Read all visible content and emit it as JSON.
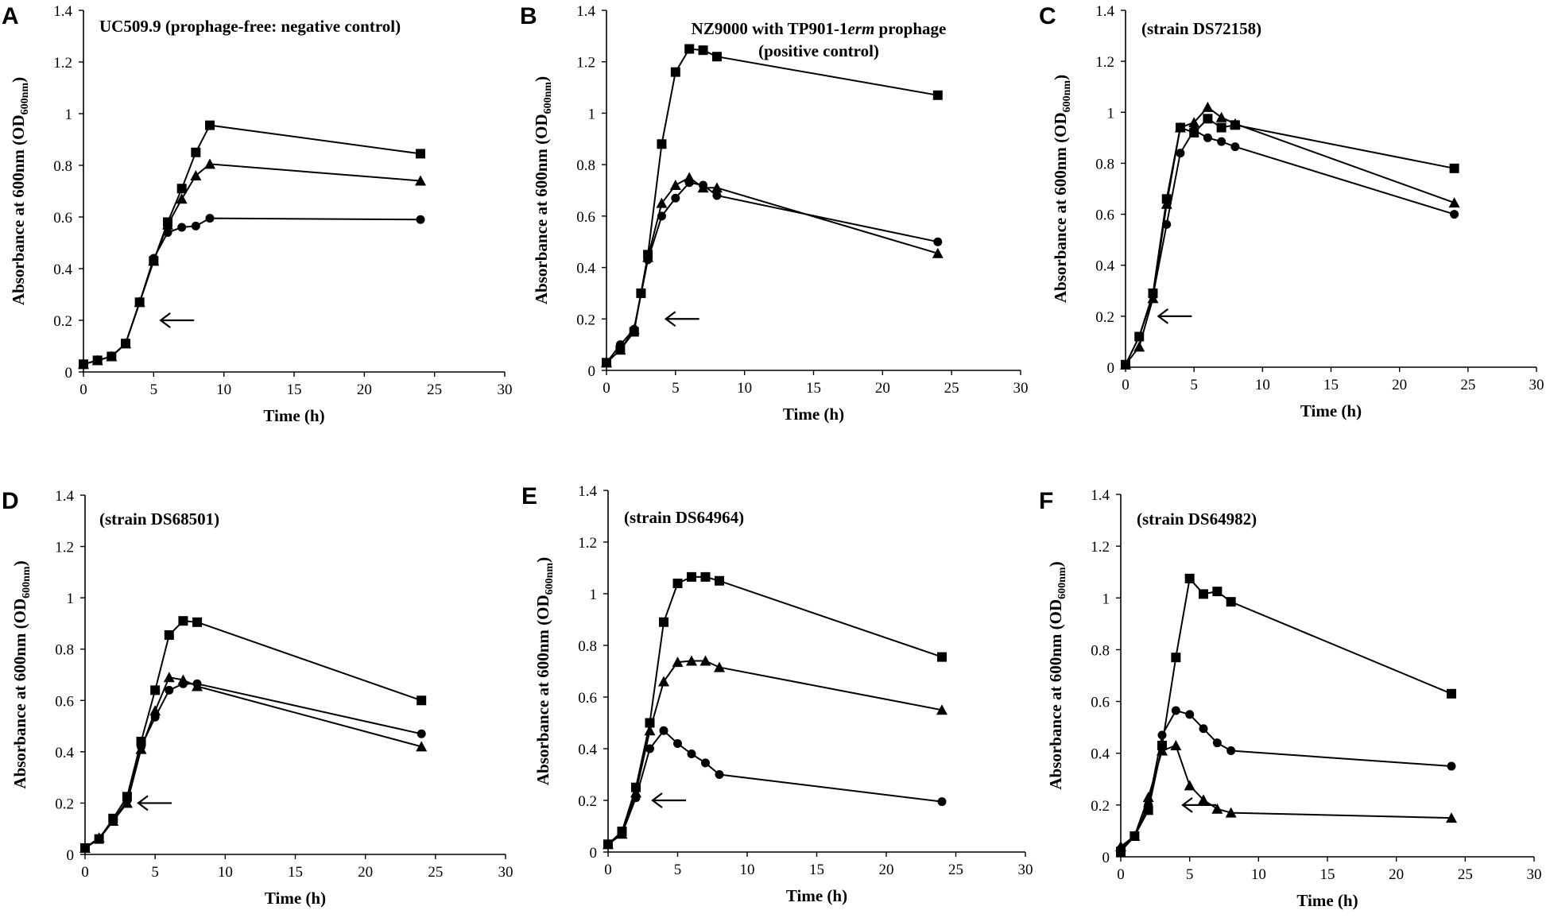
{
  "figure": {
    "xlabel": "Time (h)",
    "ylabel": "Absorbance at 600nm (OD",
    "ylabel_subscript": "600nm",
    "ylabel_suffix": ")",
    "arrow_symbol": "←"
  },
  "chart_data": [
    {
      "panel": "A",
      "type": "line",
      "title_lines": [
        "UC509.9 (prophage-free: negative control)"
      ],
      "xlabel": "Time (h)",
      "ylabel": "Absorbance at 600nm (OD600nm)",
      "xlim": [
        0,
        30
      ],
      "ylim": [
        0,
        1.4
      ],
      "xticks": [
        0,
        5,
        10,
        15,
        20,
        25,
        30
      ],
      "yticks": [
        0,
        0.2,
        0.4,
        0.6,
        0.8,
        1,
        1.2,
        1.4
      ],
      "ytick_labels": [
        "0",
        "0.2",
        "0.4",
        "0.6",
        "0.8",
        "1",
        "1.2",
        "1.4"
      ],
      "arrow_at": {
        "x": 5.5,
        "y": 0.2
      },
      "series": [
        {
          "name": "square",
          "marker": "square",
          "x": [
            0,
            1,
            2,
            3,
            4,
            5,
            6,
            7,
            8,
            9,
            24
          ],
          "y": [
            0.03,
            0.045,
            0.06,
            0.11,
            0.27,
            0.43,
            0.58,
            0.71,
            0.85,
            0.955,
            0.845
          ]
        },
        {
          "name": "triangle",
          "marker": "triangle",
          "x": [
            0,
            1,
            2,
            3,
            4,
            5,
            6,
            7,
            8,
            9,
            24
          ],
          "y": [
            0.03,
            0.045,
            0.06,
            0.11,
            0.27,
            0.43,
            0.57,
            0.67,
            0.76,
            0.805,
            0.74
          ]
        },
        {
          "name": "circle",
          "marker": "circle",
          "x": [
            0,
            1,
            2,
            3,
            4,
            5,
            6,
            7,
            8,
            9,
            24
          ],
          "y": [
            0.03,
            0.045,
            0.06,
            0.11,
            0.27,
            0.44,
            0.54,
            0.56,
            0.565,
            0.595,
            0.59
          ]
        }
      ]
    },
    {
      "panel": "B",
      "type": "line",
      "title_lines": [
        "NZ9000 with TP901-1erm prophage",
        "(positive control)"
      ],
      "xlabel": "Time (h)",
      "ylabel": "Absorbance at 600nm (OD600nm)",
      "xlim": [
        0,
        30
      ],
      "ylim": [
        0,
        1.4
      ],
      "xticks": [
        0,
        5,
        10,
        15,
        20,
        25,
        30
      ],
      "yticks": [
        0,
        0.2,
        0.4,
        0.6,
        0.8,
        1,
        1.2,
        1.4
      ],
      "ytick_labels": [
        "0",
        "0.2",
        "0.4",
        "0.6",
        "0.8",
        "1",
        "1.2",
        "1.4"
      ],
      "arrow_at": {
        "x": 4.3,
        "y": 0.2
      },
      "series": [
        {
          "name": "square",
          "marker": "square",
          "x": [
            0,
            1,
            2,
            2.5,
            3,
            4,
            5,
            6,
            7,
            8,
            24
          ],
          "y": [
            0.03,
            0.08,
            0.15,
            0.3,
            0.45,
            0.88,
            1.16,
            1.25,
            1.245,
            1.22,
            1.07
          ]
        },
        {
          "name": "triangle",
          "marker": "triangle",
          "x": [
            0,
            1,
            2,
            3,
            4,
            5,
            6,
            7,
            8,
            24
          ],
          "y": [
            0.03,
            0.08,
            0.16,
            0.44,
            0.65,
            0.72,
            0.75,
            0.71,
            0.71,
            0.455
          ]
        },
        {
          "name": "circle",
          "marker": "circle",
          "x": [
            0,
            1,
            2,
            3,
            4,
            5,
            6,
            7,
            8,
            24
          ],
          "y": [
            0.03,
            0.1,
            0.16,
            0.43,
            0.6,
            0.67,
            0.73,
            0.72,
            0.68,
            0.5
          ]
        }
      ]
    },
    {
      "panel": "C",
      "type": "line",
      "title_lines": [
        "(strain DS72158)"
      ],
      "xlabel": "Time (h)",
      "ylabel": "Absorbance at 600nm (OD600nm)",
      "xlim": [
        0,
        30
      ],
      "ylim": [
        0,
        1.4
      ],
      "xticks": [
        0,
        5,
        10,
        15,
        20,
        25,
        30
      ],
      "yticks": [
        0,
        0.2,
        0.4,
        0.6,
        0.8,
        1,
        1.2,
        1.4
      ],
      "ytick_labels": [
        "0",
        "0.2",
        "0.4",
        "0.6",
        "0.8",
        "1",
        "1.2",
        "1.4"
      ],
      "arrow_at": {
        "x": 2.4,
        "y": 0.2
      },
      "series": [
        {
          "name": "square",
          "marker": "square",
          "x": [
            0,
            1,
            2,
            3,
            4,
            5,
            6,
            7,
            8,
            24
          ],
          "y": [
            0.01,
            0.12,
            0.29,
            0.66,
            0.94,
            0.92,
            0.975,
            0.94,
            0.95,
            0.78
          ]
        },
        {
          "name": "triangle",
          "marker": "triangle",
          "x": [
            0,
            1,
            2,
            3,
            4,
            5,
            6,
            7,
            8,
            24
          ],
          "y": [
            0.01,
            0.08,
            0.27,
            0.64,
            0.94,
            0.96,
            1.02,
            0.98,
            0.955,
            0.645
          ]
        },
        {
          "name": "circle",
          "marker": "circle",
          "x": [
            0,
            1,
            2,
            3,
            4,
            5,
            6,
            7,
            8,
            24
          ],
          "y": [
            0.01,
            0.12,
            0.28,
            0.56,
            0.84,
            0.93,
            0.9,
            0.885,
            0.865,
            0.6
          ]
        }
      ]
    },
    {
      "panel": "D",
      "type": "line",
      "title_lines": [
        "(strain DS68501)"
      ],
      "xlabel": "Time (h)",
      "ylabel": "Absorbance at 600nm (OD600nm)",
      "xlim": [
        0,
        30
      ],
      "ylim": [
        0,
        1.4
      ],
      "xticks": [
        0,
        5,
        10,
        15,
        20,
        25,
        30
      ],
      "yticks": [
        0,
        0.2,
        0.4,
        0.6,
        0.8,
        1,
        1.2,
        1.4
      ],
      "ytick_labels": [
        "0",
        "0.2",
        "0.4",
        "0.6",
        "0.8",
        "1",
        "1.2",
        "1.4"
      ],
      "arrow_at": {
        "x": 3.8,
        "y": 0.2
      },
      "series": [
        {
          "name": "square",
          "marker": "square",
          "x": [
            0,
            1,
            2,
            3,
            4,
            5,
            6,
            7,
            8,
            24
          ],
          "y": [
            0.025,
            0.06,
            0.14,
            0.225,
            0.44,
            0.64,
            0.855,
            0.91,
            0.905,
            0.6
          ]
        },
        {
          "name": "triangle",
          "marker": "triangle",
          "x": [
            0,
            1,
            2,
            3,
            4,
            5,
            6,
            7,
            8,
            24
          ],
          "y": [
            0.025,
            0.065,
            0.13,
            0.2,
            0.41,
            0.56,
            0.69,
            0.68,
            0.655,
            0.42
          ]
        },
        {
          "name": "circle",
          "marker": "circle",
          "x": [
            0,
            1,
            2,
            3,
            4,
            5,
            6,
            7,
            8,
            24
          ],
          "y": [
            0.025,
            0.06,
            0.13,
            0.21,
            0.42,
            0.535,
            0.64,
            0.665,
            0.665,
            0.47
          ]
        }
      ]
    },
    {
      "panel": "E",
      "type": "line",
      "title_lines": [
        "(strain DS64964)"
      ],
      "xlabel": "Time (h)",
      "ylabel": "Absorbance at 600nm (OD600nm)",
      "xlim": [
        0,
        30
      ],
      "ylim": [
        0,
        1.4
      ],
      "xticks": [
        0,
        5,
        10,
        15,
        20,
        25,
        30
      ],
      "yticks": [
        0,
        0.2,
        0.4,
        0.6,
        0.8,
        1,
        1.2,
        1.4
      ],
      "ytick_labels": [
        "0",
        "0.2",
        "0.4",
        "0.6",
        "0.8",
        "1",
        "1.2",
        "1.4"
      ],
      "arrow_at": {
        "x": 3.2,
        "y": 0.2
      },
      "series": [
        {
          "name": "square",
          "marker": "square",
          "x": [
            0,
            1,
            2,
            3,
            4,
            5,
            6,
            7,
            8,
            24
          ],
          "y": [
            0.03,
            0.08,
            0.25,
            0.5,
            0.89,
            1.04,
            1.065,
            1.065,
            1.05,
            0.755
          ]
        },
        {
          "name": "triangle",
          "marker": "triangle",
          "x": [
            0,
            1,
            2,
            3,
            4,
            5,
            6,
            7,
            8,
            24
          ],
          "y": [
            0.03,
            0.07,
            0.23,
            0.47,
            0.66,
            0.735,
            0.74,
            0.74,
            0.715,
            0.55
          ]
        },
        {
          "name": "circle",
          "marker": "circle",
          "x": [
            0,
            1,
            2,
            3,
            4,
            5,
            6,
            7,
            8,
            24
          ],
          "y": [
            0.03,
            0.07,
            0.21,
            0.4,
            0.47,
            0.42,
            0.38,
            0.345,
            0.3,
            0.195
          ]
        }
      ]
    },
    {
      "panel": "F",
      "type": "line",
      "title_lines": [
        "(strain DS64982)"
      ],
      "xlabel": "Time (h)",
      "ylabel": "Absorbance at 600nm (OD600nm)",
      "xlim": [
        0,
        30
      ],
      "ylim": [
        0,
        1.4
      ],
      "xticks": [
        0,
        5,
        10,
        15,
        20,
        25,
        30
      ],
      "yticks": [
        0,
        0.2,
        0.4,
        0.6,
        0.8,
        1,
        1.2,
        1.4
      ],
      "ytick_labels": [
        "0",
        "0.2",
        "0.4",
        "0.6",
        "0.8",
        "1",
        "1.2",
        "1.4"
      ],
      "arrow_at": {
        "x": 4.5,
        "y": 0.2
      },
      "series": [
        {
          "name": "square",
          "marker": "square",
          "x": [
            0,
            1,
            2,
            3,
            4,
            5,
            6,
            7,
            8,
            24
          ],
          "y": [
            0.02,
            0.08,
            0.18,
            0.43,
            0.77,
            1.075,
            1.015,
            1.025,
            0.985,
            0.63
          ]
        },
        {
          "name": "triangle",
          "marker": "triangle",
          "x": [
            0,
            1,
            2,
            3,
            4,
            5,
            6,
            7,
            8,
            24
          ],
          "y": [
            0.04,
            0.08,
            0.23,
            0.41,
            0.43,
            0.275,
            0.22,
            0.185,
            0.17,
            0.15
          ]
        },
        {
          "name": "circle",
          "marker": "circle",
          "x": [
            0,
            1,
            2,
            3,
            4,
            5,
            6,
            7,
            8,
            24
          ],
          "y": [
            0.03,
            0.08,
            0.2,
            0.47,
            0.565,
            0.55,
            0.495,
            0.44,
            0.41,
            0.35
          ]
        }
      ]
    }
  ]
}
